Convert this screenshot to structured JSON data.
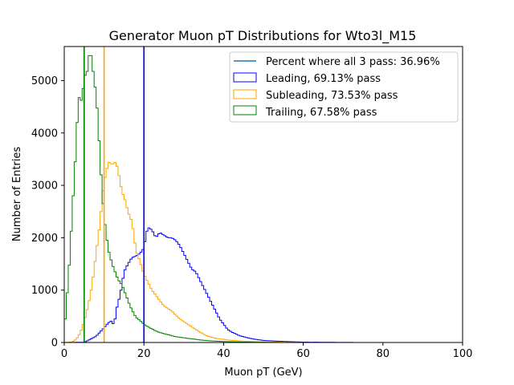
{
  "chart_data": {
    "type": "histogram",
    "title": "Generator Muon pT Distributions for Wto3l_M15",
    "xlabel": "Muon pT (GeV)",
    "ylabel": "Number of Entries",
    "xlim": [
      0,
      100
    ],
    "ylim": [
      0,
      5650
    ],
    "x_ticks": [
      "0",
      "20",
      "40",
      "60",
      "80",
      "100"
    ],
    "y_ticks": [
      "0",
      "1000",
      "2000",
      "3000",
      "4000",
      "5000"
    ],
    "grid": false,
    "legend_position": "top-right",
    "bin_width": 0.5,
    "vertical_lines": [
      {
        "x": 20,
        "color": "#0000ff",
        "series": "Leading"
      },
      {
        "x": 10,
        "color": "#ffa500",
        "series": "Subleading"
      },
      {
        "x": 5,
        "color": "#008000",
        "series": "Trailing"
      }
    ],
    "legend": [
      {
        "label": "Percent where all 3 pass: 36.96%",
        "color": "#1f77b4",
        "kind": "line"
      },
      {
        "label": "Leading, 69.13% pass",
        "color": "#0000ff",
        "kind": "box"
      },
      {
        "label": "Subleading, 73.53% pass",
        "color": "#ffa500",
        "kind": "box"
      },
      {
        "label": "Trailing, 67.58% pass",
        "color": "#008000",
        "kind": "box"
      }
    ],
    "series": [
      {
        "name": "Leading",
        "color": "#0000ff",
        "points": [
          [
            0,
            0
          ],
          [
            5,
            5
          ],
          [
            6,
            40
          ],
          [
            8,
            120
          ],
          [
            9,
            200
          ],
          [
            10,
            280
          ],
          [
            11,
            370
          ],
          [
            12,
            420
          ],
          [
            12.5,
            300
          ],
          [
            13,
            600
          ],
          [
            14,
            900
          ],
          [
            14.5,
            1100
          ],
          [
            15,
            1350
          ],
          [
            16,
            1500
          ],
          [
            17,
            1620
          ],
          [
            18,
            1650
          ],
          [
            19,
            1700
          ],
          [
            20,
            1800
          ],
          [
            20.5,
            2050
          ],
          [
            21,
            2200
          ],
          [
            22,
            2150
          ],
          [
            23,
            2000
          ],
          [
            24,
            2100
          ],
          [
            25,
            2050
          ],
          [
            26,
            2000
          ],
          [
            27,
            2000
          ],
          [
            28,
            1950
          ],
          [
            29,
            1850
          ],
          [
            30,
            1700
          ],
          [
            31,
            1550
          ],
          [
            32,
            1400
          ],
          [
            33,
            1350
          ],
          [
            34,
            1200
          ],
          [
            35,
            1050
          ],
          [
            36,
            900
          ],
          [
            37,
            750
          ],
          [
            38,
            600
          ],
          [
            39,
            450
          ],
          [
            40,
            350
          ],
          [
            41,
            250
          ],
          [
            42,
            200
          ],
          [
            44,
            130
          ],
          [
            46,
            90
          ],
          [
            48,
            60
          ],
          [
            50,
            40
          ],
          [
            55,
            20
          ],
          [
            60,
            8
          ],
          [
            65,
            4
          ],
          [
            70,
            2
          ],
          [
            75,
            0
          ],
          [
            100,
            0
          ]
        ]
      },
      {
        "name": "Subleading",
        "color": "#ffa500",
        "points": [
          [
            0,
            0
          ],
          [
            2,
            10
          ],
          [
            3,
            60
          ],
          [
            4,
            180
          ],
          [
            5,
            400
          ],
          [
            6,
            700
          ],
          [
            7,
            1100
          ],
          [
            8,
            1700
          ],
          [
            9,
            2300
          ],
          [
            9.5,
            2700
          ],
          [
            10,
            3100
          ],
          [
            10.5,
            3200
          ],
          [
            11,
            3450
          ],
          [
            12,
            3400
          ],
          [
            13,
            3450
          ],
          [
            14,
            3100
          ],
          [
            14.5,
            2850
          ],
          [
            15,
            2800
          ],
          [
            16,
            2500
          ],
          [
            17,
            2300
          ],
          [
            17.5,
            2050
          ],
          [
            18,
            1750
          ],
          [
            19,
            1550
          ],
          [
            20,
            1300
          ],
          [
            21,
            1150
          ],
          [
            22,
            1000
          ],
          [
            23,
            900
          ],
          [
            24,
            800
          ],
          [
            25,
            700
          ],
          [
            26,
            650
          ],
          [
            27,
            600
          ],
          [
            28,
            520
          ],
          [
            29,
            450
          ],
          [
            30,
            400
          ],
          [
            31,
            350
          ],
          [
            32,
            300
          ],
          [
            33,
            250
          ],
          [
            34,
            200
          ],
          [
            35,
            160
          ],
          [
            36,
            120
          ],
          [
            37,
            100
          ],
          [
            38,
            80
          ],
          [
            40,
            60
          ],
          [
            42,
            40
          ],
          [
            45,
            25
          ],
          [
            50,
            12
          ],
          [
            55,
            5
          ],
          [
            60,
            2
          ],
          [
            65,
            0
          ],
          [
            100,
            0
          ]
        ]
      },
      {
        "name": "Trailing",
        "color": "#008000",
        "points": [
          [
            0,
            200
          ],
          [
            0.5,
            700
          ],
          [
            1,
            1200
          ],
          [
            1.5,
            1750
          ],
          [
            2,
            2500
          ],
          [
            2.5,
            3100
          ],
          [
            3,
            3800
          ],
          [
            3.5,
            4600
          ],
          [
            4,
            4750
          ],
          [
            4.5,
            4500
          ],
          [
            5,
            5200
          ],
          [
            5.5,
            5000
          ],
          [
            6,
            5350
          ],
          [
            6.5,
            5600
          ],
          [
            7,
            5350
          ],
          [
            7.5,
            5000
          ],
          [
            8,
            4750
          ],
          [
            8.5,
            4200
          ],
          [
            9,
            3500
          ],
          [
            9.5,
            2900
          ],
          [
            10,
            2400
          ],
          [
            10.5,
            2100
          ],
          [
            11,
            1800
          ],
          [
            11.5,
            1650
          ],
          [
            12,
            1500
          ],
          [
            12.5,
            1400
          ],
          [
            13,
            1300
          ],
          [
            13.5,
            1200
          ],
          [
            14,
            1150
          ],
          [
            14.5,
            1100
          ],
          [
            15,
            1000
          ],
          [
            15.5,
            900
          ],
          [
            16,
            800
          ],
          [
            16.5,
            700
          ],
          [
            17,
            620
          ],
          [
            17.5,
            550
          ],
          [
            18,
            480
          ],
          [
            19,
            420
          ],
          [
            20,
            350
          ],
          [
            21,
            300
          ],
          [
            22,
            260
          ],
          [
            23,
            220
          ],
          [
            24,
            190
          ],
          [
            25,
            170
          ],
          [
            26,
            150
          ],
          [
            27,
            130
          ],
          [
            28,
            110
          ],
          [
            30,
            90
          ],
          [
            32,
            70
          ],
          [
            34,
            50
          ],
          [
            36,
            35
          ],
          [
            38,
            25
          ],
          [
            40,
            18
          ],
          [
            45,
            8
          ],
          [
            50,
            3
          ],
          [
            55,
            0
          ],
          [
            100,
            0
          ]
        ]
      }
    ]
  }
}
